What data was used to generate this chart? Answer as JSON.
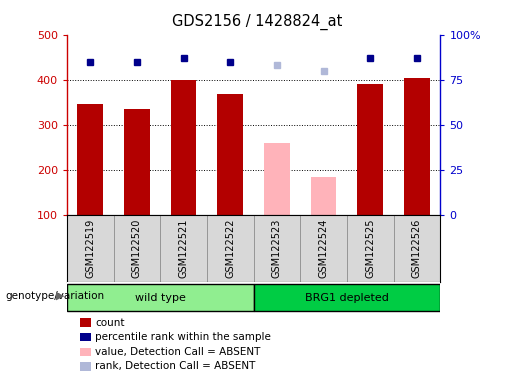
{
  "title": "GDS2156 / 1428824_at",
  "samples": [
    "GSM122519",
    "GSM122520",
    "GSM122521",
    "GSM122522",
    "GSM122523",
    "GSM122524",
    "GSM122525",
    "GSM122526"
  ],
  "counts": [
    345,
    335,
    400,
    368,
    null,
    null,
    390,
    403
  ],
  "absent_values": [
    null,
    null,
    null,
    null,
    260,
    185,
    null,
    null
  ],
  "percentile_ranks": [
    85,
    85,
    87,
    85,
    null,
    null,
    87,
    87
  ],
  "absent_ranks": [
    null,
    null,
    null,
    null,
    83,
    80,
    null,
    null
  ],
  "ylim_left": [
    100,
    500
  ],
  "ylim_right": [
    0,
    100
  ],
  "yticks_left": [
    100,
    200,
    300,
    400,
    500
  ],
  "ytick_labels_left": [
    "100",
    "200",
    "300",
    "400",
    "500"
  ],
  "yticks_right": [
    0,
    25,
    50,
    75,
    100
  ],
  "ytick_labels_right": [
    "0",
    "25",
    "50",
    "75",
    "100%"
  ],
  "grid_values": [
    200,
    300,
    400
  ],
  "group1_indices": [
    0,
    1,
    2,
    3
  ],
  "group2_indices": [
    4,
    5,
    6,
    7
  ],
  "group1_label": "wild type",
  "group2_label": "BRG1 depleted",
  "group_row_label": "genotype/variation",
  "bar_color_present": "#b30000",
  "bar_color_absent": "#ffb3ba",
  "dot_color_present": "#00008b",
  "dot_color_absent": "#b0b8d8",
  "bar_bottom": 100,
  "legend_items": [
    {
      "label": "count",
      "color": "#b30000"
    },
    {
      "label": "percentile rank within the sample",
      "color": "#00008b"
    },
    {
      "label": "value, Detection Call = ABSENT",
      "color": "#ffb3ba"
    },
    {
      "label": "rank, Detection Call = ABSENT",
      "color": "#b0b8d8"
    }
  ],
  "cell_bg": "#d8d8d8",
  "plot_bg": "#ffffff",
  "group1_bg": "#90ee90",
  "group2_bg": "#00cc44",
  "left_axis_color": "#cc0000",
  "right_axis_color": "#0000cc"
}
